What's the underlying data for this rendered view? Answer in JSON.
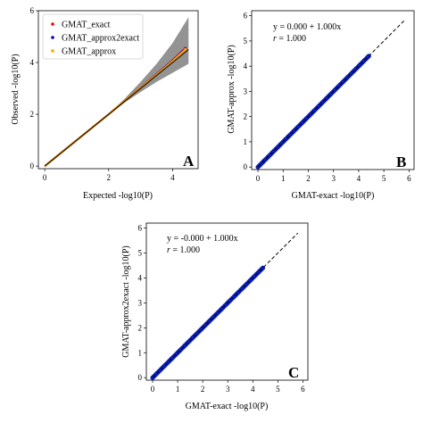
{
  "chart_data": [
    {
      "id": "A",
      "type": "line",
      "panel_label": "A",
      "xlabel": "Expected -log10(P)",
      "ylabel": "Observed -log10(P)",
      "xlim": [
        -0.2,
        4.8
      ],
      "ylim": [
        -0.1,
        6
      ],
      "xticks": [
        0,
        2,
        4
      ],
      "yticks": [
        0,
        2,
        4,
        6
      ],
      "legend": {
        "position": "top-left",
        "entries": [
          "GMAT_exact",
          "GMAT_approx2exact",
          "GMAT_approx"
        ]
      },
      "confidence_band": {
        "x": [
          0,
          2,
          2.5,
          3,
          3.5,
          4,
          4.5
        ],
        "lower": [
          0,
          1.99,
          2.45,
          2.86,
          3.25,
          3.6,
          3.95
        ],
        "upper": [
          0,
          2.01,
          2.6,
          3.25,
          3.95,
          4.75,
          5.75
        ],
        "color": "#808080"
      },
      "series": [
        {
          "name": "GMAT_exact",
          "color": "#ff0000",
          "x": [
            0,
            1,
            2,
            3,
            3.5,
            4,
            4.4
          ],
          "y": [
            0,
            1,
            2,
            3.03,
            3.55,
            4.08,
            4.55
          ]
        },
        {
          "name": "GMAT_approx2exact",
          "color": "#0000cc",
          "x": [
            0,
            1,
            2,
            3,
            3.5,
            4,
            4.4
          ],
          "y": [
            0,
            1,
            2,
            3.02,
            3.54,
            4.07,
            4.52
          ]
        },
        {
          "name": "GMAT_approx",
          "color": "#ffa500",
          "x": [
            0,
            1,
            2,
            3,
            3.5,
            4,
            4.4
          ],
          "y": [
            0,
            1,
            2,
            3.02,
            3.53,
            4.05,
            4.5
          ]
        }
      ],
      "reference_line": {
        "x": [
          0,
          4.5
        ],
        "y": [
          0,
          4.5
        ],
        "color": "#000000"
      }
    },
    {
      "id": "B",
      "type": "scatter",
      "panel_label": "B",
      "xlabel": "GMAT-exact -log10(P)",
      "ylabel": "GMAT-approx -log10(P)",
      "xlim": [
        -0.25,
        6.2
      ],
      "ylim": [
        -0.1,
        6.2
      ],
      "xticks": [
        0,
        1,
        2,
        3,
        4,
        5,
        6
      ],
      "yticks": [
        0,
        1,
        2,
        3,
        4,
        5,
        6
      ],
      "equation": "y = 0.000 + 1.000x",
      "r_label": "r",
      "r_value": " = 1.000",
      "points": {
        "x_start": 0,
        "x_end": 4.4,
        "color": "#0a1fb8"
      },
      "fit_line": {
        "x": [
          0,
          5.8
        ],
        "y": [
          0,
          5.8
        ],
        "style": "dashed",
        "color": "#000000"
      }
    },
    {
      "id": "C",
      "type": "scatter",
      "panel_label": "C",
      "xlabel": "GMAT-exact -log10(P)",
      "ylabel": "GMAT-approx2exact -log10(P)",
      "xlim": [
        -0.25,
        6.2
      ],
      "ylim": [
        -0.1,
        6.2
      ],
      "xticks": [
        0,
        1,
        2,
        3,
        4,
        5,
        6
      ],
      "yticks": [
        0,
        1,
        2,
        3,
        4,
        5,
        6
      ],
      "equation": "y = -0.000 + 1.000x",
      "r_label": "r",
      "r_value": " = 1.000",
      "points": {
        "x_start": 0,
        "x_end": 4.4,
        "color": "#0a1fb8"
      },
      "fit_line": {
        "x": [
          0,
          5.8
        ],
        "y": [
          0,
          5.8
        ],
        "style": "dashed",
        "color": "#000000"
      }
    }
  ]
}
